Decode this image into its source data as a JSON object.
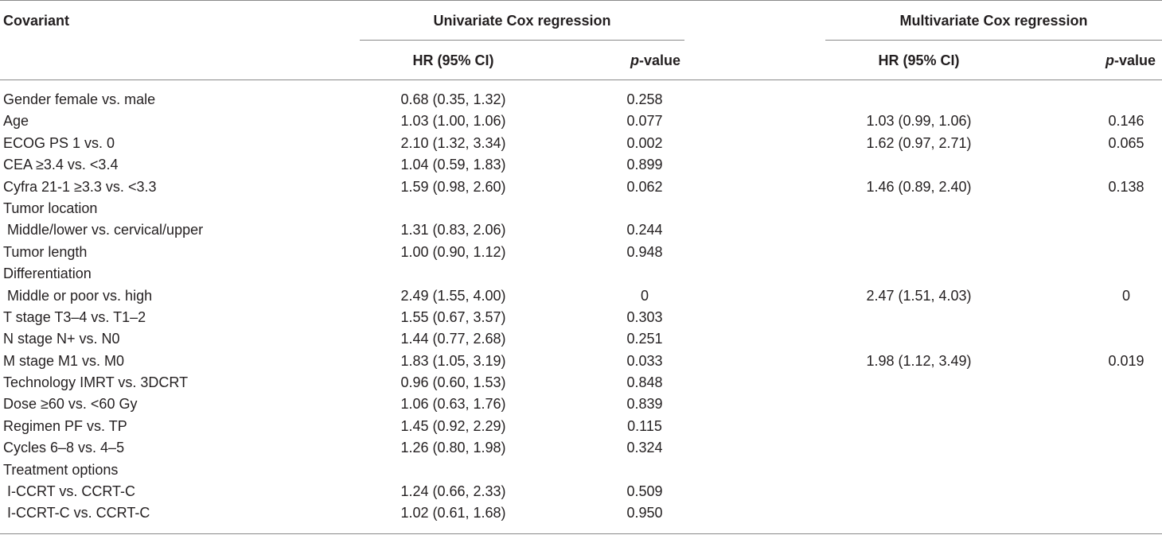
{
  "header": {
    "covariant": "Covariant",
    "univariate": "Univariate Cox regression",
    "multivariate": "Multivariate Cox regression",
    "hr_label": "HR (95% CI)",
    "p_italic": "p",
    "p_suffix": "-value"
  },
  "rows": [
    {
      "covariant": "Gender female vs. male",
      "uni_hr": "0.68 (0.35, 1.32)",
      "uni_p": "0.258",
      "multi_hr": "",
      "multi_p": ""
    },
    {
      "covariant": "Age",
      "uni_hr": "1.03 (1.00, 1.06)",
      "uni_p": "0.077",
      "multi_hr": "1.03 (0.99, 1.06)",
      "multi_p": "0.146"
    },
    {
      "covariant": "ECOG PS 1 vs. 0",
      "uni_hr": "2.10 (1.32, 3.34)",
      "uni_p": "0.002",
      "multi_hr": "1.62 (0.97, 2.71)",
      "multi_p": "0.065"
    },
    {
      "covariant": "CEA ≥3.4 vs. <3.4",
      "uni_hr": "1.04 (0.59, 1.83)",
      "uni_p": "0.899",
      "multi_hr": "",
      "multi_p": ""
    },
    {
      "covariant": "Cyfra 21-1 ≥3.3 vs. <3.3",
      "uni_hr": "1.59 (0.98, 2.60)",
      "uni_p": "0.062",
      "multi_hr": "1.46 (0.89, 2.40)",
      "multi_p": "0.138"
    },
    {
      "covariant": "Tumor location",
      "uni_hr": "",
      "uni_p": "",
      "multi_hr": "",
      "multi_p": ""
    },
    {
      "covariant": " Middle/lower vs. cervical/upper",
      "uni_hr": "1.31 (0.83, 2.06)",
      "uni_p": "0.244",
      "multi_hr": "",
      "multi_p": ""
    },
    {
      "covariant": "Tumor length",
      "uni_hr": "1.00 (0.90, 1.12)",
      "uni_p": "0.948",
      "multi_hr": "",
      "multi_p": ""
    },
    {
      "covariant": "Differentiation",
      "uni_hr": "",
      "uni_p": "",
      "multi_hr": "",
      "multi_p": ""
    },
    {
      "covariant": " Middle or poor vs. high",
      "uni_hr": "2.49 (1.55, 4.00)",
      "uni_p": "0",
      "multi_hr": "2.47 (1.51, 4.03)",
      "multi_p": "0"
    },
    {
      "covariant": "T stage T3–4 vs. T1–2",
      "uni_hr": "1.55 (0.67, 3.57)",
      "uni_p": "0.303",
      "multi_hr": "",
      "multi_p": ""
    },
    {
      "covariant": "N stage N+ vs. N0",
      "uni_hr": "1.44 (0.77, 2.68)",
      "uni_p": "0.251",
      "multi_hr": "",
      "multi_p": ""
    },
    {
      "covariant": "M stage M1 vs. M0",
      "uni_hr": "1.83 (1.05, 3.19)",
      "uni_p": "0.033",
      "multi_hr": "1.98 (1.12, 3.49)",
      "multi_p": "0.019"
    },
    {
      "covariant": "Technology IMRT vs. 3DCRT",
      "uni_hr": "0.96 (0.60, 1.53)",
      "uni_p": "0.848",
      "multi_hr": "",
      "multi_p": ""
    },
    {
      "covariant": "Dose ≥60 vs. <60 Gy",
      "uni_hr": "1.06 (0.63, 1.76)",
      "uni_p": "0.839",
      "multi_hr": "",
      "multi_p": ""
    },
    {
      "covariant": "Regimen PF vs. TP",
      "uni_hr": "1.45 (0.92, 2.29)",
      "uni_p": "0.115",
      "multi_hr": "",
      "multi_p": ""
    },
    {
      "covariant": "Cycles 6–8 vs. 4–5",
      "uni_hr": "1.26 (0.80, 1.98)",
      "uni_p": "0.324",
      "multi_hr": "",
      "multi_p": ""
    },
    {
      "covariant": "Treatment options",
      "uni_hr": "",
      "uni_p": "",
      "multi_hr": "",
      "multi_p": ""
    },
    {
      "covariant": " I-CCRT vs. CCRT-C",
      "uni_hr": "1.24 (0.66, 2.33)",
      "uni_p": "0.509",
      "multi_hr": "",
      "multi_p": ""
    },
    {
      "covariant": " I-CCRT-C vs. CCRT-C",
      "uni_hr": "1.02 (0.61, 1.68)",
      "uni_p": "0.950",
      "multi_hr": "",
      "multi_p": ""
    }
  ]
}
